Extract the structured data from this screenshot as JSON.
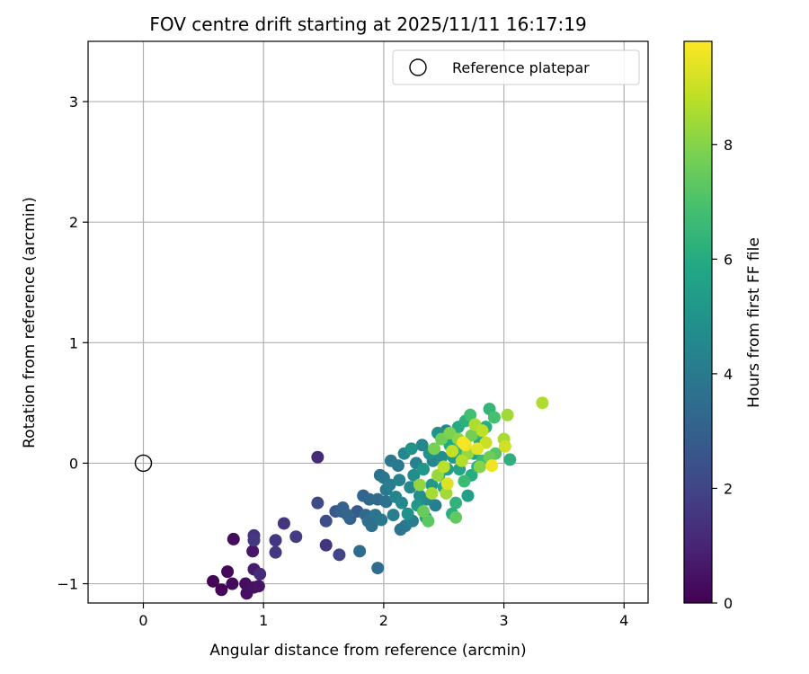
{
  "chart_data": {
    "type": "scatter",
    "title": "FOV centre drift starting at 2025/11/11 16:17:19",
    "xlabel": "Angular distance from reference (arcmin)",
    "ylabel": "Rotation from reference (arcmin)",
    "xlim": [
      -0.46,
      4.2
    ],
    "ylim": [
      -1.16,
      3.5
    ],
    "xticks": [
      0,
      1,
      2,
      3,
      4
    ],
    "yticks": [
      -1,
      0,
      1,
      2,
      3
    ],
    "grid": true,
    "legend": {
      "label": "Reference platepar",
      "location": "upper right"
    },
    "reference_point": {
      "x": 0,
      "y": 0
    },
    "colorbar": {
      "label": "Hours from first FF file",
      "min": 0,
      "max": 9.8,
      "ticks": [
        0,
        2,
        4,
        6,
        8
      ],
      "colormap": "viridis"
    },
    "points": [
      {
        "x": 0.58,
        "y": -0.98,
        "h": 0.1
      },
      {
        "x": 0.65,
        "y": -1.05,
        "h": 0.15
      },
      {
        "x": 0.7,
        "y": -0.9,
        "h": 0.2
      },
      {
        "x": 0.74,
        "y": -1.0,
        "h": 0.25
      },
      {
        "x": 0.75,
        "y": -0.63,
        "h": 0.3
      },
      {
        "x": 0.85,
        "y": -1.0,
        "h": 0.35
      },
      {
        "x": 0.86,
        "y": -1.08,
        "h": 0.4
      },
      {
        "x": 0.92,
        "y": -1.03,
        "h": 0.45
      },
      {
        "x": 0.96,
        "y": -1.02,
        "h": 0.5
      },
      {
        "x": 0.91,
        "y": -0.73,
        "h": 0.6
      },
      {
        "x": 0.92,
        "y": -0.88,
        "h": 0.7
      },
      {
        "x": 0.97,
        "y": -0.92,
        "h": 1.2
      },
      {
        "x": 0.92,
        "y": -0.6,
        "h": 1.4
      },
      {
        "x": 0.92,
        "y": -0.64,
        "h": 1.6
      },
      {
        "x": 1.1,
        "y": -0.64,
        "h": 1.5
      },
      {
        "x": 1.1,
        "y": -0.74,
        "h": 1.6
      },
      {
        "x": 1.17,
        "y": -0.5,
        "h": 1.5
      },
      {
        "x": 1.27,
        "y": -0.61,
        "h": 1.7
      },
      {
        "x": 1.45,
        "y": 0.05,
        "h": 1.2
      },
      {
        "x": 1.45,
        "y": -0.33,
        "h": 2.2
      },
      {
        "x": 1.52,
        "y": -0.68,
        "h": 1.5
      },
      {
        "x": 1.52,
        "y": -0.48,
        "h": 2.3
      },
      {
        "x": 1.6,
        "y": -0.4,
        "h": 2.7
      },
      {
        "x": 1.63,
        "y": -0.76,
        "h": 2.0
      },
      {
        "x": 1.65,
        "y": -0.4,
        "h": 3.0
      },
      {
        "x": 1.66,
        "y": -0.37,
        "h": 3.1
      },
      {
        "x": 1.7,
        "y": -0.43,
        "h": 3.2
      },
      {
        "x": 1.72,
        "y": -0.46,
        "h": 3.0
      },
      {
        "x": 1.78,
        "y": -0.4,
        "h": 2.8
      },
      {
        "x": 1.8,
        "y": -0.73,
        "h": 3.5
      },
      {
        "x": 1.83,
        "y": -0.27,
        "h": 3.2
      },
      {
        "x": 1.85,
        "y": -0.43,
        "h": 3.4
      },
      {
        "x": 1.87,
        "y": -0.48,
        "h": 3.6
      },
      {
        "x": 1.88,
        "y": -0.3,
        "h": 3.3
      },
      {
        "x": 1.9,
        "y": -0.52,
        "h": 3.6
      },
      {
        "x": 1.93,
        "y": -0.43,
        "h": 3.8
      },
      {
        "x": 1.95,
        "y": -0.87,
        "h": 3.5
      },
      {
        "x": 1.95,
        "y": -0.3,
        "h": 3.4
      },
      {
        "x": 1.97,
        "y": -0.1,
        "h": 3.7
      },
      {
        "x": 1.98,
        "y": -0.47,
        "h": 3.9
      },
      {
        "x": 2.0,
        "y": -0.12,
        "h": 3.8
      },
      {
        "x": 2.02,
        "y": -0.22,
        "h": 4.0
      },
      {
        "x": 2.02,
        "y": -0.32,
        "h": 3.7
      },
      {
        "x": 2.05,
        "y": -0.18,
        "h": 4.1
      },
      {
        "x": 2.06,
        "y": 0.02,
        "h": 3.9
      },
      {
        "x": 2.08,
        "y": -0.43,
        "h": 4.2
      },
      {
        "x": 2.1,
        "y": -0.28,
        "h": 4.4
      },
      {
        "x": 2.12,
        "y": -0.02,
        "h": 4.0
      },
      {
        "x": 2.13,
        "y": -0.14,
        "h": 4.3
      },
      {
        "x": 2.14,
        "y": -0.55,
        "h": 3.8
      },
      {
        "x": 2.15,
        "y": -0.33,
        "h": 4.6
      },
      {
        "x": 2.17,
        "y": 0.08,
        "h": 4.5
      },
      {
        "x": 2.18,
        "y": -0.52,
        "h": 3.9
      },
      {
        "x": 2.2,
        "y": -0.42,
        "h": 4.9
      },
      {
        "x": 2.22,
        "y": -0.2,
        "h": 4.6
      },
      {
        "x": 2.23,
        "y": 0.12,
        "h": 5.0
      },
      {
        "x": 2.24,
        "y": -0.48,
        "h": 4.2
      },
      {
        "x": 2.25,
        "y": -0.1,
        "h": 4.7
      },
      {
        "x": 2.27,
        "y": 0.0,
        "h": 4.3
      },
      {
        "x": 2.28,
        "y": -0.35,
        "h": 5.2
      },
      {
        "x": 2.3,
        "y": -0.27,
        "h": 4.8
      },
      {
        "x": 2.32,
        "y": 0.15,
        "h": 4.5
      },
      {
        "x": 2.33,
        "y": -0.05,
        "h": 5.1
      },
      {
        "x": 2.35,
        "y": -0.45,
        "h": 5.5
      },
      {
        "x": 2.36,
        "y": -0.3,
        "h": 4.6
      },
      {
        "x": 2.38,
        "y": 0.08,
        "h": 4.9
      },
      {
        "x": 2.4,
        "y": -0.18,
        "h": 5.3
      },
      {
        "x": 2.41,
        "y": 0.02,
        "h": 4.4
      },
      {
        "x": 2.43,
        "y": -0.35,
        "h": 4.2
      },
      {
        "x": 2.45,
        "y": 0.25,
        "h": 5.0
      },
      {
        "x": 2.46,
        "y": -0.1,
        "h": 5.6
      },
      {
        "x": 2.48,
        "y": 0.05,
        "h": 4.7
      },
      {
        "x": 2.5,
        "y": -0.2,
        "h": 5.8
      },
      {
        "x": 2.52,
        "y": 0.27,
        "h": 4.5
      },
      {
        "x": 2.53,
        "y": -0.05,
        "h": 5.4
      },
      {
        "x": 2.55,
        "y": 0.15,
        "h": 5.9
      },
      {
        "x": 2.57,
        "y": -0.42,
        "h": 6.1
      },
      {
        "x": 2.58,
        "y": 0.05,
        "h": 5.2
      },
      {
        "x": 2.6,
        "y": -0.33,
        "h": 6.3
      },
      {
        "x": 2.62,
        "y": 0.3,
        "h": 6.0
      },
      {
        "x": 2.63,
        "y": -0.05,
        "h": 5.7
      },
      {
        "x": 2.65,
        "y": 0.12,
        "h": 6.4
      },
      {
        "x": 2.67,
        "y": -0.15,
        "h": 6.6
      },
      {
        "x": 2.68,
        "y": 0.35,
        "h": 6.2
      },
      {
        "x": 2.7,
        "y": -0.27,
        "h": 5.5
      },
      {
        "x": 2.72,
        "y": 0.4,
        "h": 6.8
      },
      {
        "x": 2.73,
        "y": -0.1,
        "h": 6.0
      },
      {
        "x": 2.75,
        "y": 0.08,
        "h": 5.6
      },
      {
        "x": 2.77,
        "y": 0.25,
        "h": 6.5
      },
      {
        "x": 2.78,
        "y": -0.03,
        "h": 6.3
      },
      {
        "x": 2.8,
        "y": 0.18,
        "h": 5.9
      },
      {
        "x": 2.82,
        "y": 0.02,
        "h": 6.7
      },
      {
        "x": 2.85,
        "y": 0.3,
        "h": 6.1
      },
      {
        "x": 2.88,
        "y": 0.45,
        "h": 6.4
      },
      {
        "x": 2.92,
        "y": 0.38,
        "h": 6.9
      },
      {
        "x": 3.05,
        "y": 0.03,
        "h": 6.2
      },
      {
        "x": 2.93,
        "y": 0.08,
        "h": 7.2
      },
      {
        "x": 2.3,
        "y": -0.18,
        "h": 8.2
      },
      {
        "x": 2.33,
        "y": -0.4,
        "h": 7.5
      },
      {
        "x": 2.37,
        "y": -0.48,
        "h": 7.3
      },
      {
        "x": 2.4,
        "y": -0.25,
        "h": 8.5
      },
      {
        "x": 2.42,
        "y": 0.12,
        "h": 7.8
      },
      {
        "x": 2.45,
        "y": -0.1,
        "h": 8.3
      },
      {
        "x": 2.48,
        "y": 0.2,
        "h": 7.6
      },
      {
        "x": 2.5,
        "y": -0.03,
        "h": 8.8
      },
      {
        "x": 2.52,
        "y": -0.25,
        "h": 8.4
      },
      {
        "x": 2.53,
        "y": -0.17,
        "h": 9.3
      },
      {
        "x": 2.55,
        "y": 0.25,
        "h": 7.9
      },
      {
        "x": 2.57,
        "y": 0.1,
        "h": 8.9
      },
      {
        "x": 2.6,
        "y": -0.45,
        "h": 7.4
      },
      {
        "x": 2.62,
        "y": 0.2,
        "h": 8.1
      },
      {
        "x": 2.65,
        "y": 0.02,
        "h": 8.7
      },
      {
        "x": 2.66,
        "y": 0.17,
        "h": 9.7
      },
      {
        "x": 2.68,
        "y": 0.15,
        "h": 9.5
      },
      {
        "x": 2.7,
        "y": 0.08,
        "h": 8.3
      },
      {
        "x": 2.73,
        "y": 0.23,
        "h": 7.7
      },
      {
        "x": 2.76,
        "y": 0.32,
        "h": 8.6
      },
      {
        "x": 2.78,
        "y": 0.12,
        "h": 9.4
      },
      {
        "x": 2.8,
        "y": -0.03,
        "h": 8.0
      },
      {
        "x": 2.82,
        "y": 0.27,
        "h": 8.8
      },
      {
        "x": 2.85,
        "y": 0.17,
        "h": 9.0
      },
      {
        "x": 2.88,
        "y": 0.05,
        "h": 7.6
      },
      {
        "x": 2.9,
        "y": -0.02,
        "h": 9.6
      },
      {
        "x": 3.0,
        "y": 0.2,
        "h": 8.5
      },
      {
        "x": 3.01,
        "y": 0.14,
        "h": 9.1
      },
      {
        "x": 3.03,
        "y": 0.4,
        "h": 8.4
      },
      {
        "x": 3.32,
        "y": 0.5,
        "h": 8.6
      }
    ]
  }
}
